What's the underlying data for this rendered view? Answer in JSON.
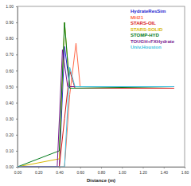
{
  "chart_data": {
    "type": "line",
    "x_label": "Distance (m)",
    "xlim": [
      0,
      1.6
    ],
    "ylim": [
      0,
      1.0
    ],
    "xticks": [
      {
        "value": 0,
        "label": "0.00"
      },
      {
        "value": 0.2,
        "label": "0.20"
      },
      {
        "value": 0.4,
        "label": "0.40"
      },
      {
        "value": 0.6,
        "label": "0.60"
      },
      {
        "value": 0.8,
        "label": "0.80"
      },
      {
        "value": 1.0,
        "label": "1.00"
      },
      {
        "value": 1.2,
        "label": "1.20"
      },
      {
        "value": 1.4,
        "label": "1.40"
      },
      {
        "value": 1.6,
        "label": "1.60"
      }
    ],
    "yticks": [
      {
        "value": 0,
        "label": "0.00"
      },
      {
        "value": 0.1,
        "label": "0.10"
      },
      {
        "value": 0.2,
        "label": "0.20"
      },
      {
        "value": 0.3,
        "label": "0.30"
      },
      {
        "value": 0.4,
        "label": "0.40"
      },
      {
        "value": 0.5,
        "label": "0.50"
      },
      {
        "value": 0.6,
        "label": "0.60"
      },
      {
        "value": 0.7,
        "label": "0.70"
      },
      {
        "value": 0.8,
        "label": "0.80"
      },
      {
        "value": 0.9,
        "label": "0.90"
      },
      {
        "value": 1.0,
        "label": "1.00"
      }
    ],
    "grid": false,
    "legend": "upper right",
    "series": [
      {
        "name": "HydrateResSim",
        "color": "#1f1fd0",
        "x": [
          0,
          0.4,
          0.45,
          0.5,
          1.5
        ],
        "values": [
          0,
          0,
          0.75,
          0.5,
          0.5
        ]
      },
      {
        "name": "MH21",
        "color": "#ff6a4a",
        "x": [
          0,
          0.45,
          0.5,
          0.56,
          0.6,
          1.5
        ],
        "values": [
          0,
          0,
          0.45,
          0.77,
          0.5,
          0.5
        ]
      },
      {
        "name": "STARS-OIL",
        "color": "#d81818",
        "x": [
          0,
          0.4,
          0.45,
          0.5,
          0.55,
          1.5
        ],
        "values": [
          0,
          0,
          0.3,
          0.6,
          0.49,
          0.49
        ]
      },
      {
        "name": "STARS-SOLID",
        "color": "#d8b800",
        "x": [
          0,
          0.4,
          0.45,
          0.5,
          1.5
        ],
        "values": [
          0,
          0.05,
          0.9,
          0.5,
          0.5
        ]
      },
      {
        "name": "STOMP-HYD",
        "color": "#007a1a",
        "x": [
          0,
          0.4,
          0.45,
          0.5,
          1.5
        ],
        "values": [
          0,
          0.1,
          0.9,
          0.49,
          0.5
        ]
      },
      {
        "name": "TOUGH+FXHydrate",
        "color": "#7a1a90",
        "x": [
          0,
          0.38,
          0.43,
          0.48,
          1.5
        ],
        "values": [
          0,
          0,
          0.73,
          0.5,
          0.5
        ]
      },
      {
        "name": "Univ.Houston",
        "color": "#40c0e0",
        "x": [
          0,
          0.45,
          0.5,
          0.55,
          1.5
        ],
        "values": [
          0,
          0,
          0.62,
          0.5,
          0.5
        ]
      }
    ]
  }
}
